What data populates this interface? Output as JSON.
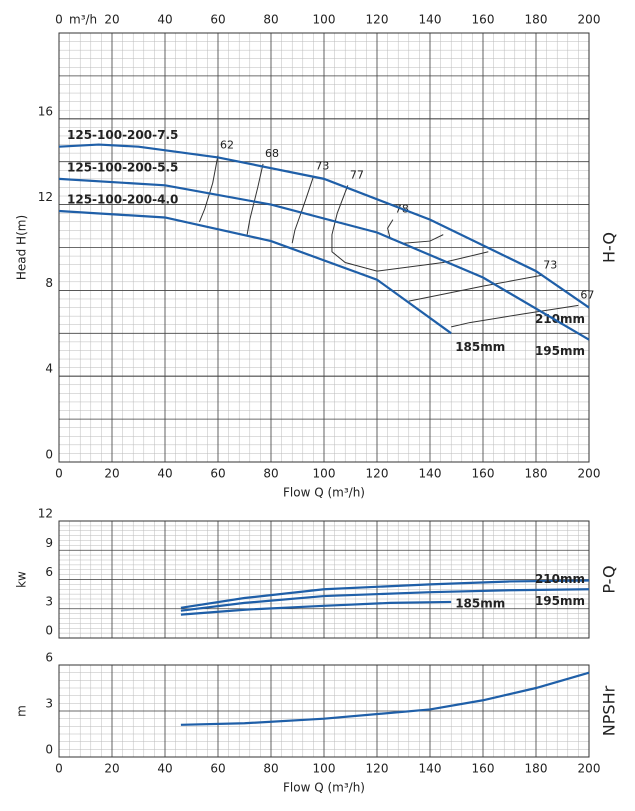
{
  "chart_data": [
    {
      "type": "line",
      "title": "H-Q",
      "x_label": "Flow Q (m³/h)",
      "y_label": "Head H(m)",
      "top_axis_unit": "m³/h",
      "xlim": [
        0,
        200
      ],
      "xticks": [
        0,
        20,
        40,
        60,
        80,
        100,
        120,
        140,
        160,
        180,
        200
      ],
      "ylim": [
        0,
        20
      ],
      "yticks": [
        0,
        4,
        8,
        12,
        16
      ],
      "grid": true,
      "series": [
        {
          "name": "210mm",
          "model": "125-100-200-7.5",
          "color": "#1f5fa8",
          "x": [
            0,
            15,
            30,
            60,
            100,
            140,
            180,
            200
          ],
          "values": [
            14.7,
            14.8,
            14.7,
            14.2,
            13.2,
            11.3,
            8.9,
            7.2
          ]
        },
        {
          "name": "195mm",
          "model": "125-100-200-5.5",
          "color": "#1f5fa8",
          "x": [
            0,
            40,
            80,
            120,
            160,
            200
          ],
          "values": [
            13.2,
            12.9,
            12.0,
            10.7,
            8.6,
            5.7
          ]
        },
        {
          "name": "185mm",
          "model": "125-100-200-4.0",
          "color": "#1f5fa8",
          "x": [
            0,
            40,
            80,
            120,
            148
          ],
          "values": [
            11.7,
            11.4,
            10.3,
            8.5,
            6.0
          ]
        }
      ],
      "contours": [
        {
          "label": "62",
          "x": [
            60,
            58,
            55,
            53
          ],
          "y": [
            14.3,
            13.0,
            11.8,
            11.2
          ]
        },
        {
          "label": "68",
          "x": [
            77,
            75,
            72,
            71
          ],
          "y": [
            13.9,
            12.8,
            11.3,
            10.6
          ]
        },
        {
          "label": "73",
          "x": [
            96,
            93,
            89,
            88
          ],
          "y": [
            13.3,
            12.2,
            10.8,
            10.2
          ]
        },
        {
          "label": "77",
          "x": [
            109,
            105,
            103,
            103,
            108,
            120,
            145,
            162
          ],
          "y": [
            12.9,
            11.6,
            10.6,
            9.8,
            9.3,
            8.9,
            9.3,
            9.8
          ]
        },
        {
          "label": "78",
          "x": [
            126,
            124,
            125,
            130,
            140,
            145
          ],
          "y": [
            11.3,
            10.9,
            10.4,
            10.2,
            10.3,
            10.6
          ]
        },
        {
          "label": "73",
          "x": [
            182,
            160,
            140,
            132
          ],
          "y": [
            8.7,
            8.2,
            7.7,
            7.5
          ]
        },
        {
          "label": "67",
          "x": [
            196,
            175,
            155,
            148
          ],
          "y": [
            7.3,
            6.9,
            6.5,
            6.3
          ]
        }
      ]
    },
    {
      "type": "line",
      "title": "P-Q",
      "y_label": "kw",
      "xlim": [
        0,
        200
      ],
      "xticks": [
        0,
        20,
        40,
        60,
        80,
        100,
        120,
        140,
        160,
        180,
        200
      ],
      "ylim": [
        0,
        12
      ],
      "yticks": [
        0,
        3,
        6,
        9,
        12
      ],
      "grid": true,
      "series": [
        {
          "name": "210mm",
          "color": "#1f5fa8",
          "x": [
            46,
            70,
            100,
            140,
            170,
            200
          ],
          "values": [
            3.1,
            4.1,
            5.0,
            5.5,
            5.8,
            5.9
          ]
        },
        {
          "name": "195mm",
          "color": "#1f5fa8",
          "x": [
            46,
            70,
            100,
            140,
            170,
            200
          ],
          "values": [
            2.8,
            3.6,
            4.3,
            4.7,
            4.9,
            5.0
          ]
        },
        {
          "name": "185mm",
          "color": "#1f5fa8",
          "x": [
            46,
            70,
            100,
            125,
            148
          ],
          "values": [
            2.4,
            2.9,
            3.3,
            3.6,
            3.7
          ]
        }
      ]
    },
    {
      "type": "line",
      "title": "NPSHr",
      "x_label": "Flow Q (m³/h)",
      "y_label": "m",
      "xlim": [
        0,
        200
      ],
      "xticks": [
        0,
        20,
        40,
        60,
        80,
        100,
        120,
        140,
        160,
        180,
        200
      ],
      "ylim": [
        0,
        6
      ],
      "yticks": [
        0,
        3,
        6
      ],
      "grid": true,
      "series": [
        {
          "color": "#1f5fa8",
          "x": [
            46,
            70,
            100,
            140,
            160,
            180,
            200
          ],
          "values": [
            2.1,
            2.2,
            2.5,
            3.1,
            3.7,
            4.5,
            5.5
          ]
        }
      ]
    }
  ]
}
